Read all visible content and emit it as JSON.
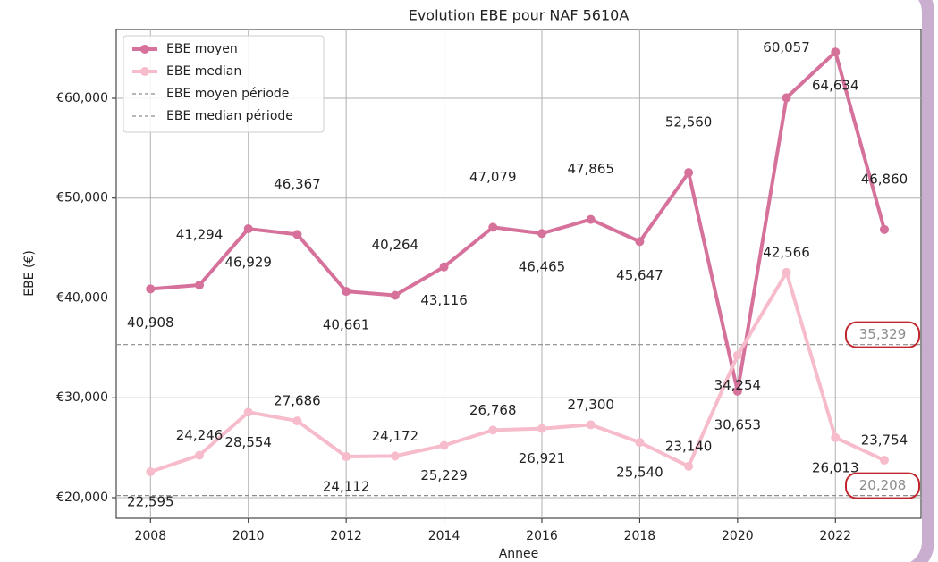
{
  "chart_data": {
    "type": "line",
    "title": "Evolution EBE pour NAF 5610A",
    "xlabel": "Annee",
    "ylabel": "EBE (€)",
    "x": [
      2008,
      2009,
      2010,
      2011,
      2012,
      2013,
      2014,
      2015,
      2016,
      2017,
      2018,
      2019,
      2020,
      2021,
      2022,
      2023
    ],
    "series": [
      {
        "name": "EBE moyen",
        "color": "#d5719a",
        "values": [
          40908,
          41294,
          46929,
          46367,
          40661,
          40264,
          43116,
          47079,
          46465,
          47865,
          45647,
          52560,
          30653,
          60057,
          64634,
          46860
        ],
        "value_labels": [
          "40,908",
          "41,294",
          "46,929",
          "46,367",
          "40,661",
          "40,264",
          "43,116",
          "47,079",
          "46,465",
          "47,865",
          "45,647",
          "52,560",
          "30,653",
          "60,057",
          "64,634",
          "46,860"
        ]
      },
      {
        "name": "EBE median",
        "color": "#f7bccb",
        "values": [
          22595,
          24246,
          28554,
          27686,
          24112,
          24172,
          25229,
          26768,
          26921,
          27300,
          25540,
          23140,
          34254,
          42566,
          26013,
          23754
        ],
        "value_labels": [
          "22,595",
          "24,246",
          "28,554",
          "27,686",
          "24,112",
          "24,172",
          "25,229",
          "26,768",
          "26,921",
          "27,300",
          "25,540",
          "23,140",
          "34,254",
          "42,566",
          "26,013",
          "23,754"
        ]
      }
    ],
    "reference_lines": [
      {
        "name": "EBE moyen période",
        "value": 35329,
        "label": "35,329",
        "color": "#8c8c8c"
      },
      {
        "name": "EBE median période",
        "value": 20208,
        "label": "20,208",
        "color": "#8c8c8c"
      }
    ],
    "xlim": [
      2007.3,
      2023.75
    ],
    "xticks": [
      2008,
      2010,
      2012,
      2014,
      2016,
      2018,
      2020,
      2022
    ],
    "ylim": [
      17940,
      66890
    ],
    "yticks": [
      {
        "value": 20000,
        "label": "€20,000"
      },
      {
        "value": 30000,
        "label": "€30,000"
      },
      {
        "value": 40000,
        "label": "€40,000"
      },
      {
        "value": 50000,
        "label": "€50,000"
      },
      {
        "value": 60000,
        "label": "€60,000"
      }
    ],
    "grid": true,
    "legend": "upper left"
  }
}
